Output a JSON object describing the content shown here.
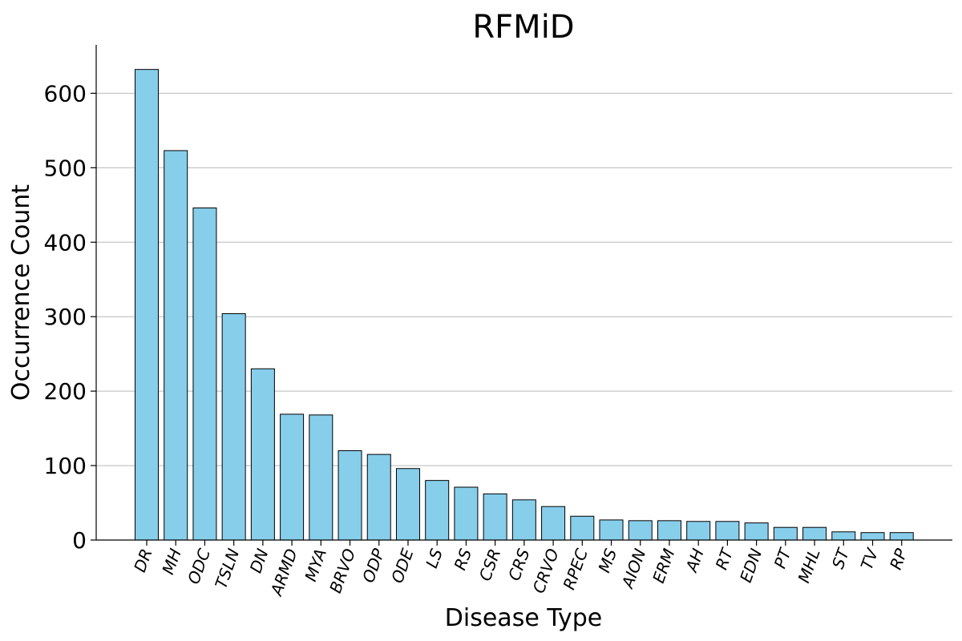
{
  "chart_data": {
    "type": "bar",
    "title": "RFMiD",
    "xlabel": "Disease Type",
    "ylabel": "Occurrence Count",
    "ylim": [
      0,
      665
    ],
    "yticks": [
      0,
      100,
      200,
      300,
      400,
      500,
      600
    ],
    "grid": "horizontal",
    "bar_color": "#87ceeb",
    "bar_edge_color": "#000000",
    "categories": [
      "DR",
      "MH",
      "ODC",
      "TSLN",
      "DN",
      "ARMD",
      "MYA",
      "BRVO",
      "ODP",
      "ODE",
      "LS",
      "RS",
      "CSR",
      "CRS",
      "CRVO",
      "RPEC",
      "MS",
      "AION",
      "ERM",
      "AH",
      "RT",
      "EDN",
      "PT",
      "MHL",
      "ST",
      "TV",
      "RP"
    ],
    "values": [
      632,
      523,
      446,
      304,
      230,
      169,
      168,
      120,
      115,
      96,
      80,
      71,
      62,
      54,
      45,
      32,
      27,
      26,
      26,
      25,
      25,
      23,
      17,
      17,
      11,
      10,
      10
    ]
  }
}
